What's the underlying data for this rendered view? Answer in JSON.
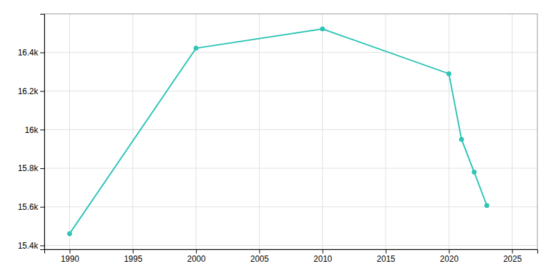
{
  "chart_data": {
    "type": "line",
    "x": [
      1990,
      2000,
      2010,
      2020,
      2021,
      2022,
      2023
    ],
    "values": [
      15461,
      16422,
      16522,
      16290,
      15950,
      15780,
      15607
    ],
    "color": "#2ec4b6",
    "marker": "circle",
    "xlim": [
      1988,
      2027
    ],
    "ylim": [
      15380,
      16600
    ],
    "xticks": [
      1990,
      1995,
      2000,
      2005,
      2010,
      2015,
      2020,
      2025
    ],
    "yticks": [
      {
        "value": 15400,
        "label": "15.4k"
      },
      {
        "value": 15600,
        "label": "15.6k"
      },
      {
        "value": 15800,
        "label": "15.8k"
      },
      {
        "value": 16000,
        "label": "16k"
      },
      {
        "value": 16200,
        "label": "16.2k"
      },
      {
        "value": 16400,
        "label": "16.4k"
      }
    ],
    "grid": true
  }
}
